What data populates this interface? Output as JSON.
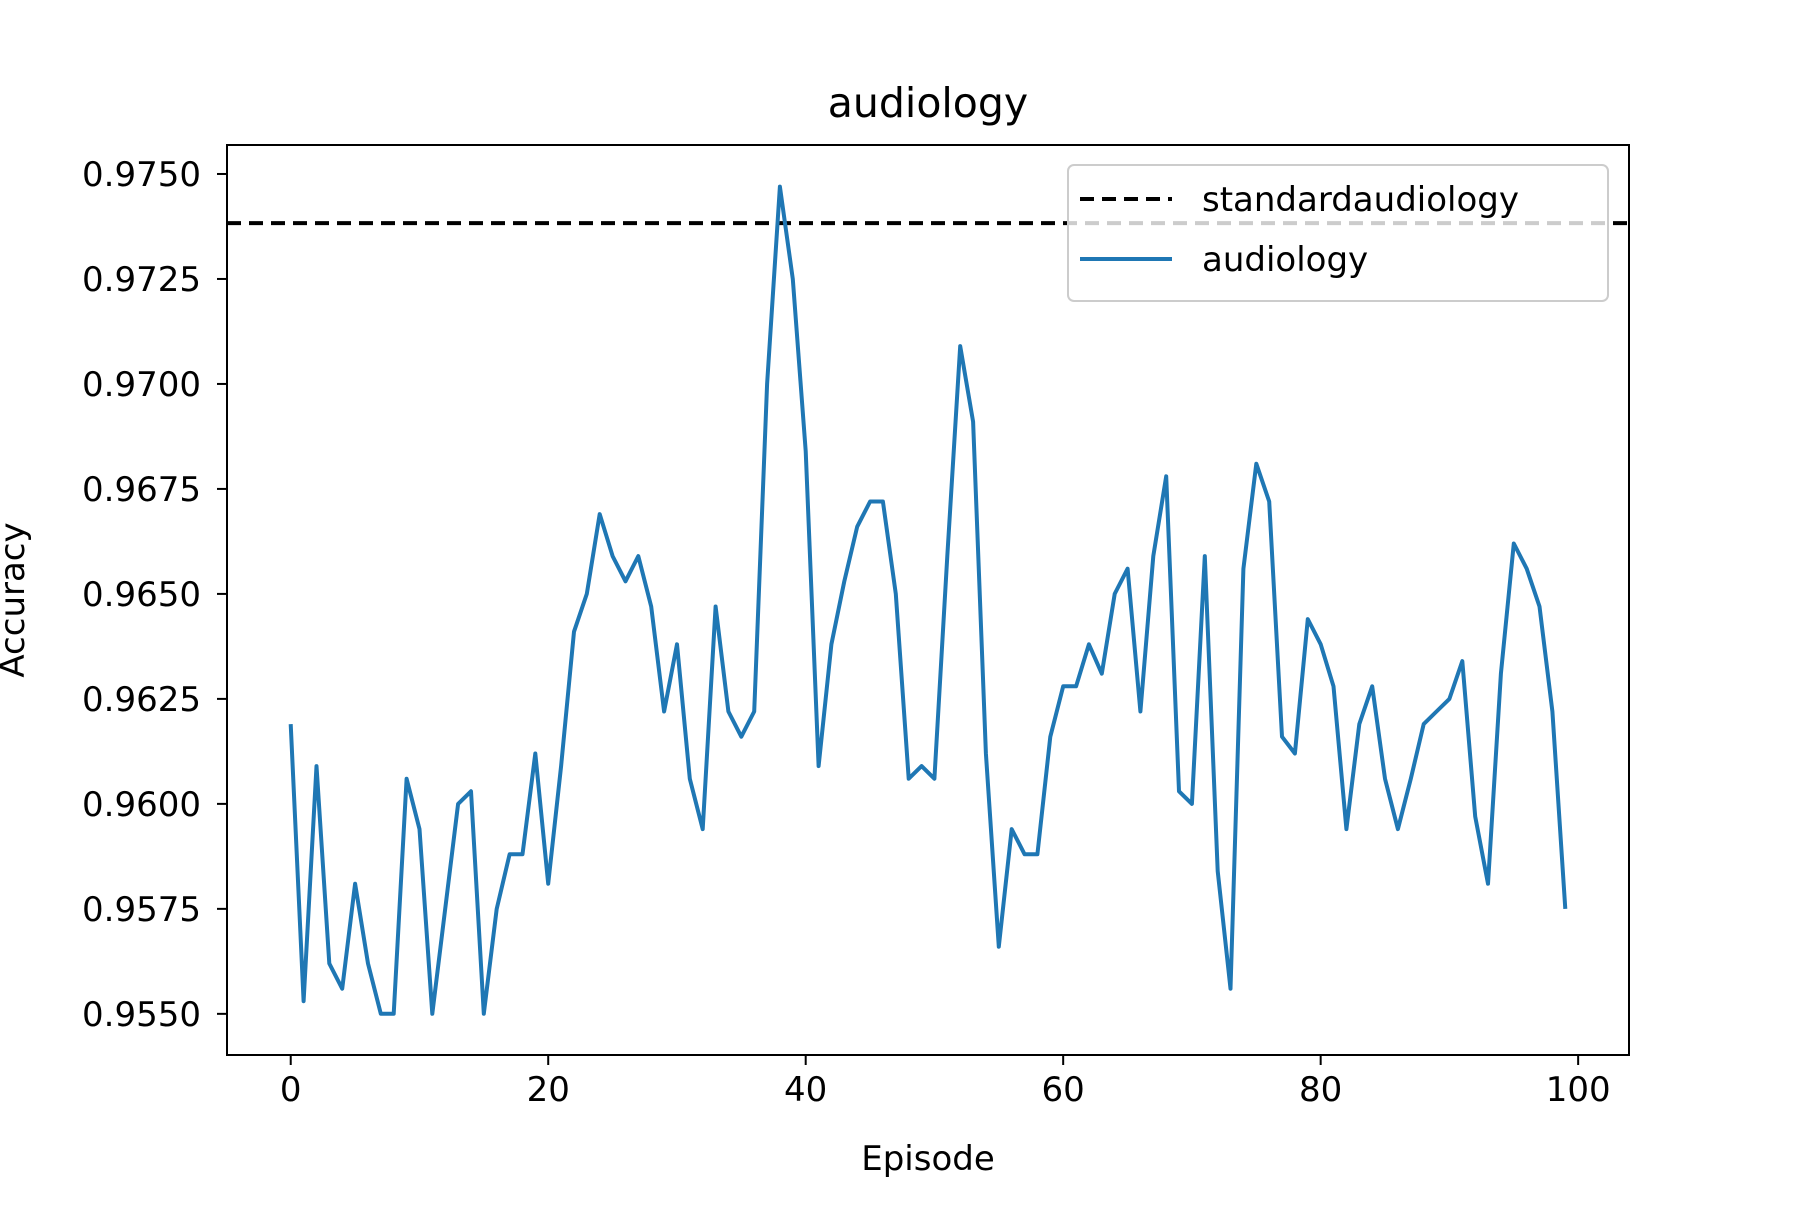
{
  "chart_data": {
    "type": "line",
    "title": "audiology",
    "xlabel": "Episode",
    "ylabel": "Accuracy",
    "xlim": [
      -4.95,
      103.95
    ],
    "ylim": [
      0.95402,
      0.97569
    ],
    "xticks": [
      0,
      20,
      40,
      60,
      80,
      100
    ],
    "xtick_labels": [
      "0",
      "20",
      "40",
      "60",
      "80",
      "100"
    ],
    "yticks": [
      0.955,
      0.9575,
      0.96,
      0.9625,
      0.965,
      0.9675,
      0.97,
      0.9725,
      0.975
    ],
    "ytick_labels": [
      "0.9550",
      "0.9575",
      "0.9600",
      "0.9625",
      "0.9650",
      "0.9675",
      "0.9700",
      "0.9725",
      "0.9750"
    ],
    "grid": false,
    "legend_position": "upper right",
    "baseline": {
      "name": "standardaudiology",
      "value": 0.97383,
      "color": "#000000",
      "style": "dashed"
    },
    "series": [
      {
        "name": "audiology",
        "color": "#1f77b4",
        "x": [
          0,
          1,
          2,
          3,
          4,
          5,
          6,
          7,
          8,
          9,
          10,
          11,
          12,
          13,
          14,
          15,
          16,
          17,
          18,
          19,
          20,
          21,
          22,
          23,
          24,
          25,
          26,
          27,
          28,
          29,
          30,
          31,
          32,
          33,
          34,
          35,
          36,
          37,
          38,
          39,
          40,
          41,
          42,
          43,
          44,
          45,
          46,
          47,
          48,
          49,
          50,
          51,
          52,
          53,
          54,
          55,
          56,
          57,
          58,
          59,
          60,
          61,
          62,
          63,
          64,
          65,
          66,
          67,
          68,
          69,
          70,
          71,
          72,
          73,
          74,
          75,
          76,
          77,
          78,
          79,
          80,
          81,
          82,
          83,
          84,
          85,
          86,
          87,
          88,
          89,
          90,
          91,
          92,
          93,
          94,
          95,
          96,
          97,
          98,
          99
        ],
        "values": [
          0.9619,
          0.9553,
          0.9609,
          0.9562,
          0.9556,
          0.9581,
          0.9562,
          0.955,
          0.955,
          0.9606,
          0.9594,
          0.955,
          0.9575,
          0.96,
          0.9603,
          0.955,
          0.9575,
          0.9588,
          0.9588,
          0.9612,
          0.9581,
          0.9609,
          0.9641,
          0.965,
          0.9669,
          0.9659,
          0.9653,
          0.9659,
          0.9647,
          0.9622,
          0.9638,
          0.9606,
          0.9594,
          0.9647,
          0.9622,
          0.9616,
          0.9622,
          0.97,
          0.9747,
          0.9725,
          0.9684,
          0.9609,
          0.9638,
          0.9653,
          0.9666,
          0.9672,
          0.9672,
          0.965,
          0.9606,
          0.9609,
          0.9606,
          0.9659,
          0.9709,
          0.9691,
          0.9612,
          0.9566,
          0.9594,
          0.9588,
          0.9588,
          0.9616,
          0.9628,
          0.9628,
          0.9638,
          0.9631,
          0.965,
          0.9656,
          0.9622,
          0.9659,
          0.9678,
          0.9603,
          0.96,
          0.9659,
          0.9584,
          0.9556,
          0.9656,
          0.9681,
          0.9672,
          0.9616,
          0.9612,
          0.9644,
          0.9638,
          0.9628,
          0.9594,
          0.9619,
          0.9628,
          0.9606,
          0.9594,
          0.9606,
          0.9619,
          0.9622,
          0.9625,
          0.9634,
          0.9597,
          0.9581,
          0.9631,
          0.9662,
          0.9656,
          0.9647,
          0.9622,
          0.9575
        ]
      }
    ]
  }
}
